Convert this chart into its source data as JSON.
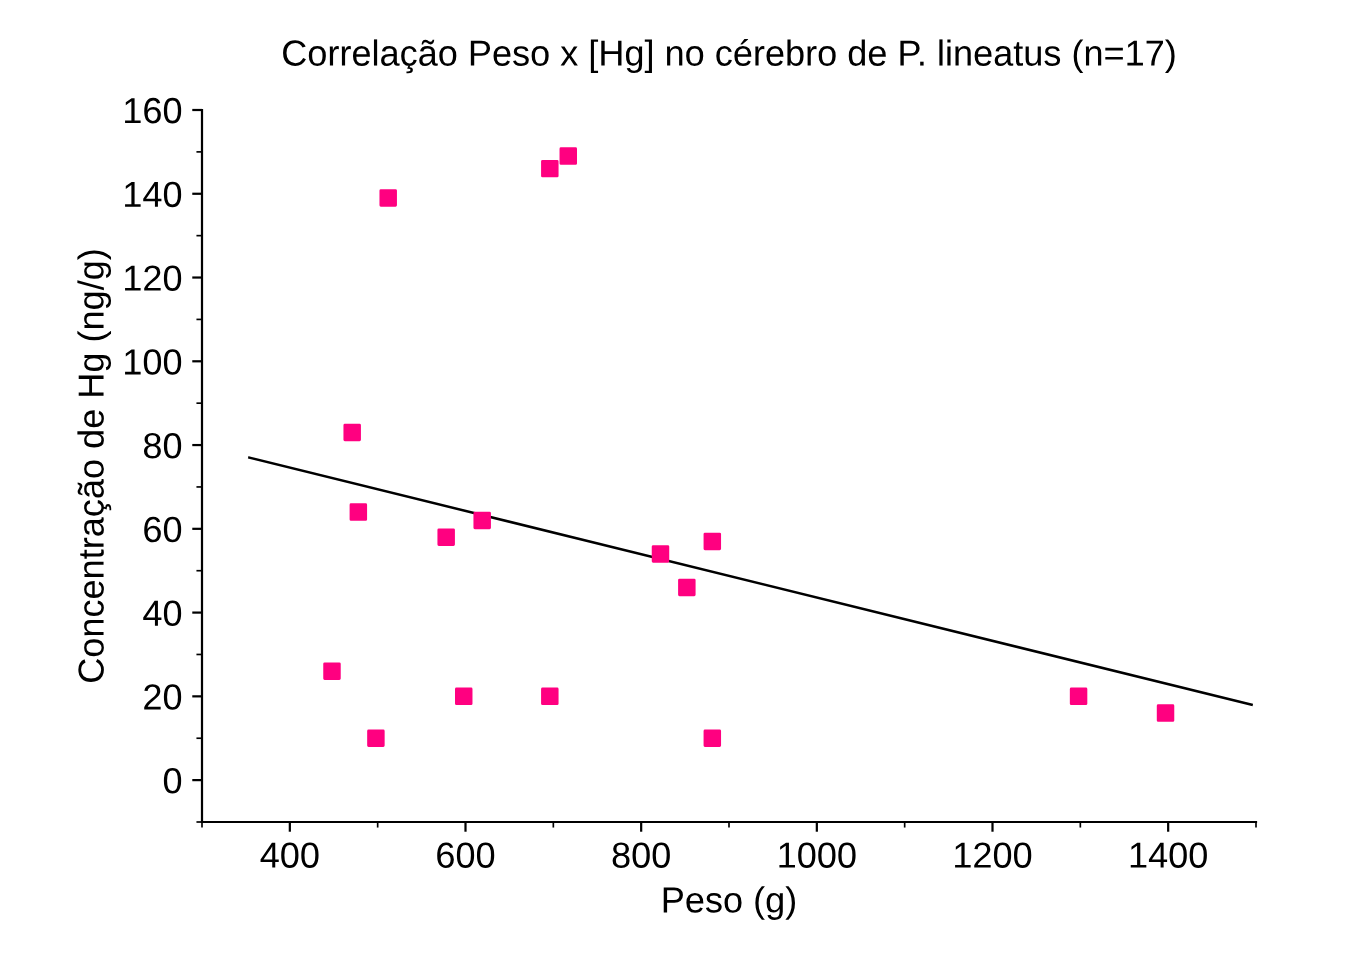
{
  "chart_data": {
    "type": "scatter",
    "title": "Correlação Peso x [Hg] no cérebro de P. lineatus (n=17)",
    "xlabel": "Peso (g)",
    "ylabel": "Concentração de Hg (ng/g)",
    "xlim": [
      300,
      1500
    ],
    "xticks": [
      400,
      600,
      800,
      1000,
      1200,
      1400
    ],
    "ylim": [
      -10,
      160
    ],
    "yticks": [
      0,
      20,
      40,
      60,
      80,
      100,
      120,
      140,
      160
    ],
    "grid": false,
    "legend": false,
    "series": [
      {
        "marker": "square",
        "color": "#ff0080",
        "x": [
          448,
          471,
          478,
          498,
          512,
          578,
          598,
          619,
          696,
          717,
          696,
          822,
          852,
          881,
          881,
          1298,
          1397
        ],
        "values": [
          26,
          83,
          64,
          10,
          139,
          58,
          20,
          62,
          146,
          149,
          20,
          54,
          46,
          57,
          10,
          20,
          16
        ]
      },
      {
        "type": "line",
        "color": "#000000",
        "x": [
          354,
          1495
        ],
        "values": [
          77,
          18
        ]
      }
    ]
  }
}
